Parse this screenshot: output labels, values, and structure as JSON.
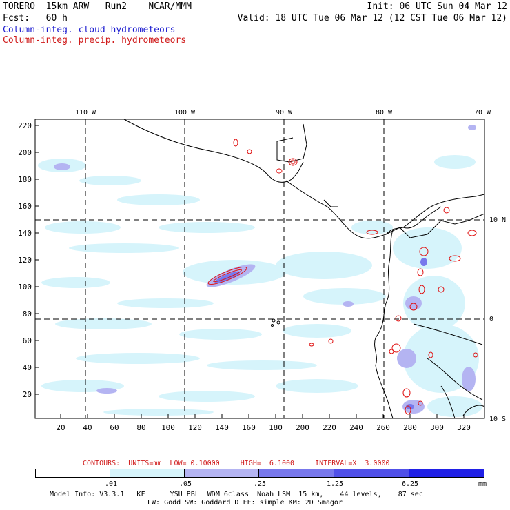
{
  "header": {
    "model": "TORERO  15km ARW   Run2    NCAR/MMM",
    "init": "Init: 06 UTC Sun 04 Mar 12",
    "fcst": "Fcst:   60 h",
    "valid": "Valid: 18 UTC Tue 06 Mar 12 (12 CST Tue 06 Mar 12)",
    "field_cloud": "Column-integ. cloud hydrometeors",
    "field_precip": "Column-integ. precip. hydrometeors"
  },
  "colors": {
    "cloud_label": "#1c1cd0",
    "precip_label": "#d01c1c",
    "shade1": "#d6f4fb",
    "shade2": "#b4b4f2",
    "shade3": "#7878ec",
    "shade4": "#2020e6",
    "precip_contour": "#e01010"
  },
  "map": {
    "lon_labels": [
      "110 W",
      "100 W",
      "90 W",
      "80 W",
      "70 W"
    ],
    "lat_labels": [
      "10 N",
      "0",
      "10 S"
    ],
    "y_ticks": [
      "220",
      "200",
      "180",
      "160",
      "140",
      "120",
      "100",
      "80",
      "60",
      "40",
      "20"
    ],
    "x_ticks": [
      "20",
      "40",
      "60",
      "80",
      "100",
      "120",
      "140",
      "160",
      "180",
      "200",
      "220",
      "240",
      "260",
      "280",
      "300",
      "320"
    ]
  },
  "contour_info": {
    "text": "CONTOURS:  UNITS=mm  LOW= 0.10000     HIGH=  6.1000     INTERVAL=X  3.0000"
  },
  "colorbar": {
    "labels": [
      ".01",
      ".05",
      ".25",
      "1.25",
      "6.25"
    ],
    "unit": "mm"
  },
  "footer": {
    "line1": "Model Info: V3.3.1   KF      YSU PBL  WDM 6class  Noah LSM  15 km,    44 levels,    87 sec",
    "line2": "LW: Godd SW: Goddard DIFF: simple KM: 2D Smagor"
  }
}
